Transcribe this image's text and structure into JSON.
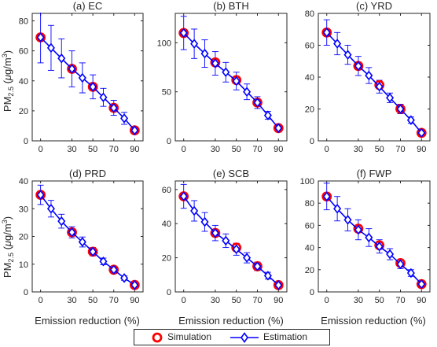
{
  "figure": {
    "ylabel_parts": {
      "pm": "PM",
      "sub": "2.5",
      "open": " (",
      "mu": "μ",
      "unit": "g/m",
      "sup": "3",
      "close": ")"
    },
    "xlabel": "Emission reduction (%)"
  },
  "legend": {
    "location": "bottom-center",
    "simulation_label": "Simulation",
    "estimation_label": "Estimation"
  },
  "colors": {
    "simulation": "#ff0000",
    "estimation": "#0000ff",
    "axis": "#262626"
  },
  "chart_data": [
    {
      "type": "line",
      "title": "(a) EC",
      "ylim": [
        0,
        85
      ],
      "yticks": [
        0,
        20,
        40,
        60,
        80
      ],
      "xticks": [
        0,
        30,
        50,
        70,
        90
      ],
      "simulation": {
        "x": [
          0,
          30,
          50,
          70,
          90
        ],
        "y": [
          69,
          48,
          36,
          22,
          7
        ]
      },
      "estimation": {
        "x": [
          0,
          10,
          20,
          30,
          40,
          50,
          60,
          70,
          80,
          90
        ],
        "y": [
          69,
          62,
          55,
          48,
          42,
          36,
          29,
          22,
          15,
          7
        ],
        "err": [
          17,
          15,
          13,
          12,
          10,
          8,
          6,
          5,
          4,
          2
        ]
      }
    },
    {
      "type": "line",
      "title": "(b) BTH",
      "ylim": [
        0,
        130
      ],
      "yticks": [
        0,
        50,
        100
      ],
      "xticks": [
        0,
        30,
        50,
        70,
        90
      ],
      "simulation": {
        "x": [
          0,
          30,
          50,
          70,
          90
        ],
        "y": [
          110,
          80,
          62,
          39,
          13
        ]
      },
      "estimation": {
        "x": [
          0,
          10,
          20,
          30,
          40,
          50,
          60,
          70,
          80,
          90
        ],
        "y": [
          110,
          99,
          89,
          79,
          70,
          61,
          50,
          39,
          26,
          13
        ],
        "err": [
          17,
          15,
          14,
          12,
          10,
          9,
          8,
          6,
          4,
          3
        ]
      }
    },
    {
      "type": "line",
      "title": "(c) YRD",
      "ylim": [
        0,
        80
      ],
      "yticks": [
        0,
        20,
        40,
        60,
        80
      ],
      "xticks": [
        0,
        30,
        50,
        70,
        90
      ],
      "simulation": {
        "x": [
          0,
          30,
          50,
          70,
          90
        ],
        "y": [
          68,
          47,
          35,
          20,
          5
        ]
      },
      "estimation": {
        "x": [
          0,
          10,
          20,
          30,
          40,
          50,
          60,
          70,
          80,
          90
        ],
        "y": [
          68,
          61,
          54,
          47,
          41,
          34,
          27,
          20,
          13,
          5
        ],
        "err": [
          8,
          7,
          6,
          6,
          5,
          4,
          3,
          3,
          2,
          1
        ]
      }
    },
    {
      "type": "line",
      "title": "(d) PRD",
      "ylim": [
        0,
        40
      ],
      "yticks": [
        0,
        10,
        20,
        30,
        40
      ],
      "xticks": [
        0,
        30,
        50,
        70,
        90
      ],
      "simulation": {
        "x": [
          0,
          30,
          50,
          70,
          90
        ],
        "y": [
          35,
          21.5,
          14.5,
          8,
          2.5
        ]
      },
      "estimation": {
        "x": [
          0,
          10,
          20,
          30,
          40,
          50,
          60,
          70,
          80,
          90
        ],
        "y": [
          35,
          30,
          25.5,
          21.5,
          18,
          14.5,
          11,
          8,
          5,
          2.5
        ],
        "err": [
          3.5,
          3,
          2.5,
          2,
          1.8,
          1.5,
          1.2,
          1,
          0.8,
          0.5
        ]
      }
    },
    {
      "type": "line",
      "title": "(e) SCB",
      "ylim": [
        0,
        65
      ],
      "yticks": [
        0,
        20,
        40,
        60
      ],
      "xticks": [
        0,
        30,
        50,
        70,
        90
      ],
      "simulation": {
        "x": [
          0,
          30,
          50,
          70,
          90
        ],
        "y": [
          56,
          34.5,
          26,
          15,
          4
        ]
      },
      "estimation": {
        "x": [
          0,
          10,
          20,
          30,
          40,
          50,
          60,
          70,
          80,
          90
        ],
        "y": [
          56,
          47.5,
          41,
          34.5,
          30,
          25,
          20,
          15,
          9.5,
          4
        ],
        "err": [
          7,
          6,
          5.5,
          4.5,
          4,
          3.5,
          3,
          2.5,
          2,
          1
        ]
      }
    },
    {
      "type": "line",
      "title": "(f) FWP",
      "ylim": [
        0,
        100
      ],
      "yticks": [
        0,
        20,
        40,
        60,
        80,
        100
      ],
      "xticks": [
        0,
        30,
        50,
        70,
        90
      ],
      "simulation": {
        "x": [
          0,
          30,
          50,
          70,
          90
        ],
        "y": [
          86,
          57,
          42,
          26,
          7
        ]
      },
      "estimation": {
        "x": [
          0,
          10,
          20,
          30,
          40,
          50,
          60,
          70,
          80,
          90
        ],
        "y": [
          86,
          75,
          65,
          56,
          49,
          41,
          34,
          25,
          17,
          7
        ],
        "err": [
          12,
          11,
          10,
          9,
          8,
          6,
          5,
          4,
          3,
          2
        ]
      }
    }
  ]
}
